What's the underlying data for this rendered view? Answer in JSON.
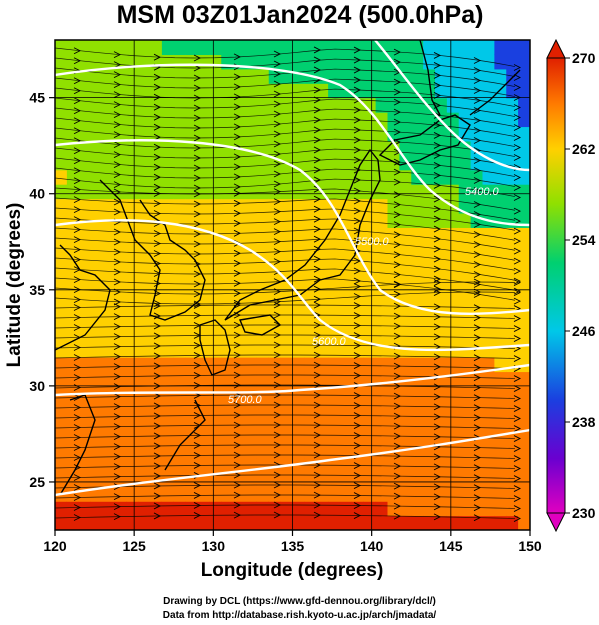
{
  "title": "MSM 03Z01Jan2024 (500.0hPa)",
  "map": {
    "xlabel": "Longitude (degrees)",
    "ylabel": "Latitude  (degrees)",
    "lon_range": [
      120,
      150
    ],
    "lat_range": [
      22.5,
      48
    ],
    "lon_ticks": [
      "120",
      "125",
      "130",
      "135",
      "140",
      "145",
      "150"
    ],
    "lat_ticks": [
      "25",
      "30",
      "35",
      "40",
      "45"
    ],
    "grid": true
  },
  "colorbar": {
    "range": [
      230,
      270
    ],
    "ticks": [
      "230",
      "238",
      "246",
      "254",
      "262",
      "270"
    ],
    "colors": [
      "#e000c0",
      "#6a00d0",
      "#1a40e0",
      "#00c8e8",
      "#00d070",
      "#90e000",
      "#ffd000",
      "#ff7a00",
      "#e02000"
    ]
  },
  "contours": [
    {
      "label": "5400.0"
    },
    {
      "label": "5500.0"
    },
    {
      "label": "5600.0"
    },
    {
      "label": "5700.0"
    }
  ],
  "credits": {
    "line1": "Drawing by DCL (https://www.gfd-dennou.org/library/dcl/)",
    "line2": "Data from http://database.rish.kyoto-u.ac.jp/arch/jmadata/"
  }
}
